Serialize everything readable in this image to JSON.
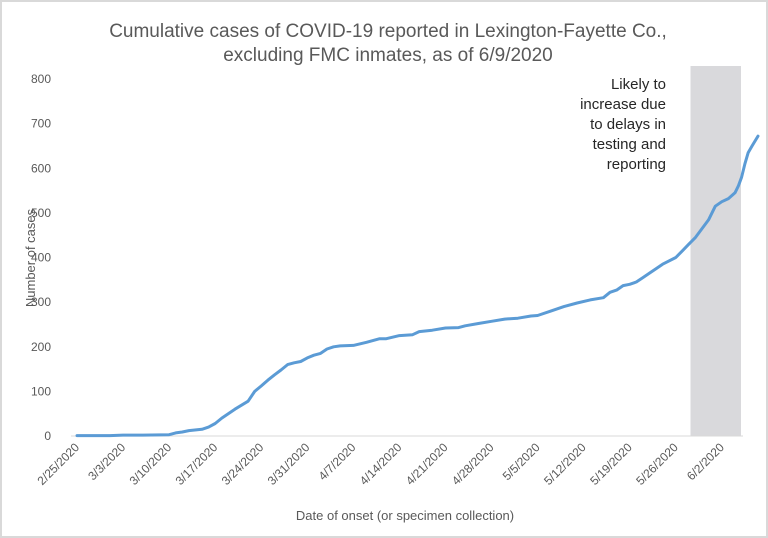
{
  "chart_data": {
    "type": "line",
    "title_lines": [
      "Cumulative cases of COVID-19 reported in Lexington-Fayette Co.,",
      "excluding FMC inmates, as of 6/9/2020"
    ],
    "xlabel": "Date of onset (or specimen collection)",
    "ylabel": "Number of cases",
    "ylim": [
      0,
      800
    ],
    "yticks": [
      0,
      100,
      200,
      300,
      400,
      500,
      600,
      700,
      800
    ],
    "x_start_date": "2/25/2020",
    "x_days_range": [
      0,
      101
    ],
    "xtick_labels": [
      "2/25/2020",
      "3/3/2020",
      "3/10/2020",
      "3/17/2020",
      "3/24/2020",
      "3/31/2020",
      "4/7/2020",
      "4/14/2020",
      "4/21/2020",
      "4/28/2020",
      "5/5/2020",
      "5/12/2020",
      "5/19/2020",
      "5/26/2020",
      "6/2/2020"
    ],
    "xtick_days": [
      0,
      7,
      14,
      21,
      28,
      35,
      42,
      49,
      56,
      63,
      70,
      77,
      84,
      91,
      98
    ],
    "grid": false,
    "series": [
      {
        "name": "Cumulative cases",
        "color": "#5b9bd5",
        "points": [
          [
            0,
            1
          ],
          [
            3,
            1
          ],
          [
            5,
            1
          ],
          [
            7,
            2
          ],
          [
            10,
            2
          ],
          [
            14,
            3
          ],
          [
            15,
            7
          ],
          [
            16,
            9
          ],
          [
            17,
            12
          ],
          [
            19,
            15
          ],
          [
            20,
            20
          ],
          [
            21,
            28
          ],
          [
            22,
            40
          ],
          [
            24,
            60
          ],
          [
            26,
            78
          ],
          [
            27,
            100
          ],
          [
            28,
            112
          ],
          [
            29,
            125
          ],
          [
            30,
            137
          ],
          [
            31,
            148
          ],
          [
            32,
            160
          ],
          [
            33,
            164
          ],
          [
            34,
            167
          ],
          [
            35,
            175
          ],
          [
            36,
            181
          ],
          [
            37,
            185
          ],
          [
            38,
            195
          ],
          [
            39,
            200
          ],
          [
            40,
            202
          ],
          [
            42,
            203
          ],
          [
            44,
            210
          ],
          [
            46,
            218
          ],
          [
            47,
            218
          ],
          [
            49,
            225
          ],
          [
            51,
            227
          ],
          [
            52,
            234
          ],
          [
            54,
            237
          ],
          [
            56,
            242
          ],
          [
            58,
            243
          ],
          [
            59,
            247
          ],
          [
            61,
            252
          ],
          [
            63,
            257
          ],
          [
            65,
            262
          ],
          [
            67,
            264
          ],
          [
            69,
            269
          ],
          [
            70,
            270
          ],
          [
            72,
            280
          ],
          [
            74,
            290
          ],
          [
            76,
            298
          ],
          [
            78,
            305
          ],
          [
            80,
            310
          ],
          [
            81,
            322
          ],
          [
            82,
            327
          ],
          [
            83,
            337
          ],
          [
            84,
            340
          ],
          [
            85,
            345
          ],
          [
            86,
            355
          ],
          [
            87,
            365
          ],
          [
            88,
            375
          ],
          [
            89,
            385
          ],
          [
            91,
            400
          ],
          [
            92,
            415
          ],
          [
            93,
            430
          ],
          [
            94,
            445
          ],
          [
            95,
            465
          ],
          [
            96,
            485
          ],
          [
            97,
            515
          ],
          [
            98,
            525
          ],
          [
            99,
            532
          ],
          [
            100,
            545
          ],
          [
            100.5,
            560
          ],
          [
            101,
            580
          ],
          [
            101.5,
            610
          ],
          [
            102,
            635
          ],
          [
            102.6,
            650
          ],
          [
            103.5,
            672
          ]
        ]
      }
    ],
    "shaded_region": {
      "from_day": 94,
      "to_day": 104,
      "color": "#d9d9dc",
      "annotation_lines": [
        "Likely to",
        "increase due",
        "to delays in",
        "testing and",
        "reporting"
      ]
    }
  }
}
